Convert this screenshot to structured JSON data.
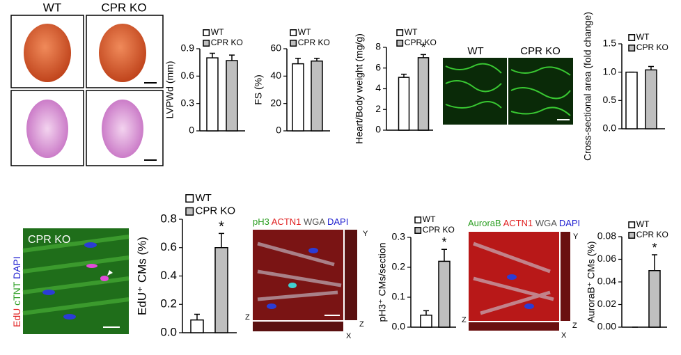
{
  "heart_panel": {
    "labels": [
      "WT",
      "CPR KO"
    ]
  },
  "wga_panel": {
    "labels": [
      "WT",
      "CPR KO"
    ]
  },
  "edu_panel": {
    "label": "CPR KO",
    "stains": [
      "EdU",
      "cTNT",
      "DAPI"
    ]
  },
  "ph3_panel": {
    "stains": [
      "pH3",
      "ACTN1",
      "WGA",
      "DAPI"
    ],
    "axes": [
      "Y",
      "Z",
      "Z",
      "X"
    ]
  },
  "aurora_panel": {
    "stains": [
      "AuroraB",
      "ACTN1",
      "WGA",
      "DAPI"
    ],
    "axes": [
      "Y",
      "Z",
      "Z",
      "X"
    ]
  },
  "chart_data": [
    {
      "type": "bar",
      "ylabel": "LVPWd (mm)",
      "ylim": [
        0,
        0.9
      ],
      "yticks": [
        0,
        0.3,
        0.6,
        0.9
      ],
      "series": [
        {
          "name": "WT",
          "color": "#ffffff",
          "values": [
            0.8
          ],
          "errors": [
            0.05
          ]
        },
        {
          "name": "CPR KO",
          "color": "#bfbfbf",
          "values": [
            0.77
          ],
          "errors": [
            0.06
          ]
        }
      ]
    },
    {
      "type": "bar",
      "ylabel": "FS (%)",
      "ylim": [
        0,
        60
      ],
      "yticks": [
        0,
        20,
        40,
        60
      ],
      "series": [
        {
          "name": "WT",
          "color": "#ffffff",
          "values": [
            49
          ],
          "errors": [
            4
          ]
        },
        {
          "name": "CPR KO",
          "color": "#bfbfbf",
          "values": [
            51
          ],
          "errors": [
            2
          ]
        }
      ]
    },
    {
      "type": "bar",
      "ylabel": "Heart/Body weight (mg/g)",
      "ylim": [
        0,
        8
      ],
      "yticks": [
        0,
        2,
        4,
        6,
        8
      ],
      "annotations": [
        "*"
      ],
      "series": [
        {
          "name": "WT",
          "color": "#ffffff",
          "values": [
            5.1
          ],
          "errors": [
            0.3
          ]
        },
        {
          "name": "CPR KO",
          "color": "#bfbfbf",
          "values": [
            7.0
          ],
          "errors": [
            0.3
          ]
        }
      ]
    },
    {
      "type": "bar",
      "ylabel": "Cross-sectional area (fold change)",
      "ylim": [
        0,
        1.5
      ],
      "yticks": [
        {
          "value": 0,
          "label": "0.0"
        },
        0.5,
        {
          "value": 1,
          "label": "1.0"
        },
        1.5
      ],
      "series": [
        {
          "name": "WT",
          "color": "#ffffff",
          "values": [
            1.0
          ],
          "errors": [
            0
          ]
        },
        {
          "name": "CPR KO",
          "color": "#bfbfbf",
          "values": [
            1.04
          ],
          "errors": [
            0.06
          ]
        }
      ]
    },
    {
      "type": "bar",
      "ylabel": "EdU⁺ CMs (%)",
      "ylim": [
        0,
        0.8
      ],
      "yticks": [
        {
          "value": 0,
          "label": "0.0"
        },
        0.2,
        0.4,
        0.6,
        0.8
      ],
      "annotations": [
        "*"
      ],
      "series": [
        {
          "name": "WT",
          "color": "#ffffff",
          "values": [
            0.09
          ],
          "errors": [
            0.04
          ]
        },
        {
          "name": "CPR KO",
          "color": "#bfbfbf",
          "values": [
            0.6
          ],
          "errors": [
            0.1
          ]
        }
      ]
    },
    {
      "type": "bar",
      "ylabel": "pH3⁺ CMs/section",
      "ylim": [
        0,
        0.3
      ],
      "yticks": [
        {
          "value": 0,
          "label": "0.0"
        },
        0.1,
        0.2,
        0.3
      ],
      "annotations": [
        "*"
      ],
      "series": [
        {
          "name": "WT",
          "color": "#ffffff",
          "values": [
            0.04
          ],
          "errors": [
            0.015
          ]
        },
        {
          "name": "CPR KO",
          "color": "#bfbfbf",
          "values": [
            0.22
          ],
          "errors": [
            0.04
          ]
        }
      ]
    },
    {
      "type": "bar",
      "ylabel": "AuroraB⁺ CMs (%)",
      "ylim": [
        0,
        0.08
      ],
      "yticks": [
        {
          "value": 0,
          "label": "0.00"
        },
        {
          "value": 0.02,
          "label": "0.02"
        },
        {
          "value": 0.04,
          "label": "0.04"
        },
        {
          "value": 0.06,
          "label": "0.06"
        },
        {
          "value": 0.08,
          "label": "0.08"
        }
      ],
      "annotations": [
        "*"
      ],
      "series": [
        {
          "name": "WT",
          "color": "#ffffff",
          "values": [
            0.0
          ],
          "errors": [
            0
          ]
        },
        {
          "name": "CPR KO",
          "color": "#bfbfbf",
          "values": [
            0.05
          ],
          "errors": [
            0.014
          ]
        }
      ]
    }
  ]
}
